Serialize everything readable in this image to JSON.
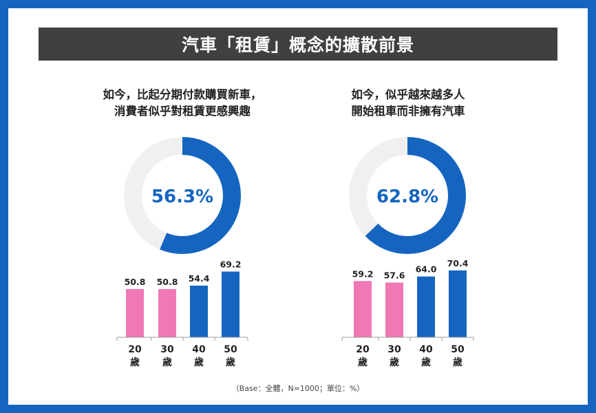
{
  "title": "汽車「租賃」概念的擴散前景",
  "base_note": "（Base：全體，N=1000；單位：%）",
  "colors": {
    "primary_blue": "#1565c0",
    "ring_track": "#f0f0f0",
    "bar_pink": "#f078b4",
    "bar_blue": "#1565c0",
    "title_bg": "#404040"
  },
  "chart_data": [
    {
      "type": "donut+bar",
      "title_lines": [
        "如今，比起分期付款購買新車，",
        "消費者似乎對租賃更感興趣"
      ],
      "donut": {
        "value": 56.3,
        "label": "56.3%"
      },
      "bar": {
        "categories": [
          [
            "20",
            "歲"
          ],
          [
            "30",
            "歲"
          ],
          [
            "40",
            "歲"
          ],
          [
            "50",
            "歲"
          ]
        ],
        "values": [
          50.8,
          50.8,
          54.4,
          69.2
        ],
        "value_labels": [
          "50.8",
          "50.8",
          "54.4",
          "69.2"
        ],
        "colors": [
          "pink",
          "pink",
          "blue",
          "blue"
        ]
      }
    },
    {
      "type": "donut+bar",
      "title_lines": [
        "如今，似乎越來越多人",
        "開始租車而非擁有汽車"
      ],
      "donut": {
        "value": 62.8,
        "label": "62.8%"
      },
      "bar": {
        "categories": [
          [
            "20",
            "歲"
          ],
          [
            "30",
            "歲"
          ],
          [
            "40",
            "歲"
          ],
          [
            "50",
            "歲"
          ]
        ],
        "values": [
          59.2,
          57.6,
          64.0,
          70.4
        ],
        "value_labels": [
          "59.2",
          "57.6",
          "64.0",
          "70.4"
        ],
        "colors": [
          "pink",
          "pink",
          "blue",
          "blue"
        ]
      }
    }
  ]
}
